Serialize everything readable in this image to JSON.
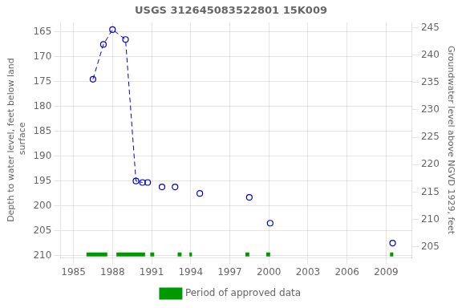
{
  "chart_data": {
    "type": "line",
    "title": "USGS 312645083522801 15K009",
    "y_label": "Depth to water level, feet below land\n surface",
    "y2_label": "Groundwater level above NGVD 1929, feet",
    "xlim": [
      1984,
      2011
    ],
    "xticks": [
      1985,
      1988,
      1991,
      1994,
      1997,
      2000,
      2003,
      2006,
      2009
    ],
    "ylim": [
      210.5,
      163.0
    ],
    "yticks": [
      165,
      170,
      175,
      180,
      185,
      190,
      195,
      200,
      205,
      210
    ],
    "y2lim": [
      203.0,
      246.0
    ],
    "y2ticks": [
      205,
      210,
      215,
      220,
      225,
      230,
      235,
      240,
      245
    ],
    "grid": true,
    "legend": "bottom",
    "series": [
      {
        "x": [
          1986.5,
          1987.3,
          1988.0,
          1989.0,
          1989.8,
          1990.3
        ],
        "values": [
          174.5,
          167.5,
          164.5,
          166.5,
          195.0,
          195.3
        ],
        "color": "#0000cc",
        "line_style": "dashed",
        "marker": "circle"
      },
      {
        "x": [
          1990.7,
          1991.8,
          1992.8,
          1994.7,
          1998.5,
          2000.1,
          2009.5
        ],
        "values": [
          195.3,
          196.2,
          196.2,
          197.5,
          198.3,
          203.5,
          207.5
        ],
        "color": "#0000cc",
        "line_style": "none",
        "marker": "circle"
      },
      {
        "name": "Period of approved data",
        "type": "bar",
        "orientation": "horizontal",
        "color": "#009900",
        "y": 209.8,
        "values": [
          [
            1986.0,
            1987.6
          ],
          [
            1988.3,
            1990.5
          ],
          [
            1990.9,
            1991.2
          ],
          [
            1993.0,
            1993.3
          ],
          [
            1993.9,
            1994.1
          ],
          [
            1998.2,
            1998.5
          ],
          [
            1999.8,
            2000.1
          ],
          [
            2009.3,
            2009.55
          ]
        ]
      }
    ]
  }
}
